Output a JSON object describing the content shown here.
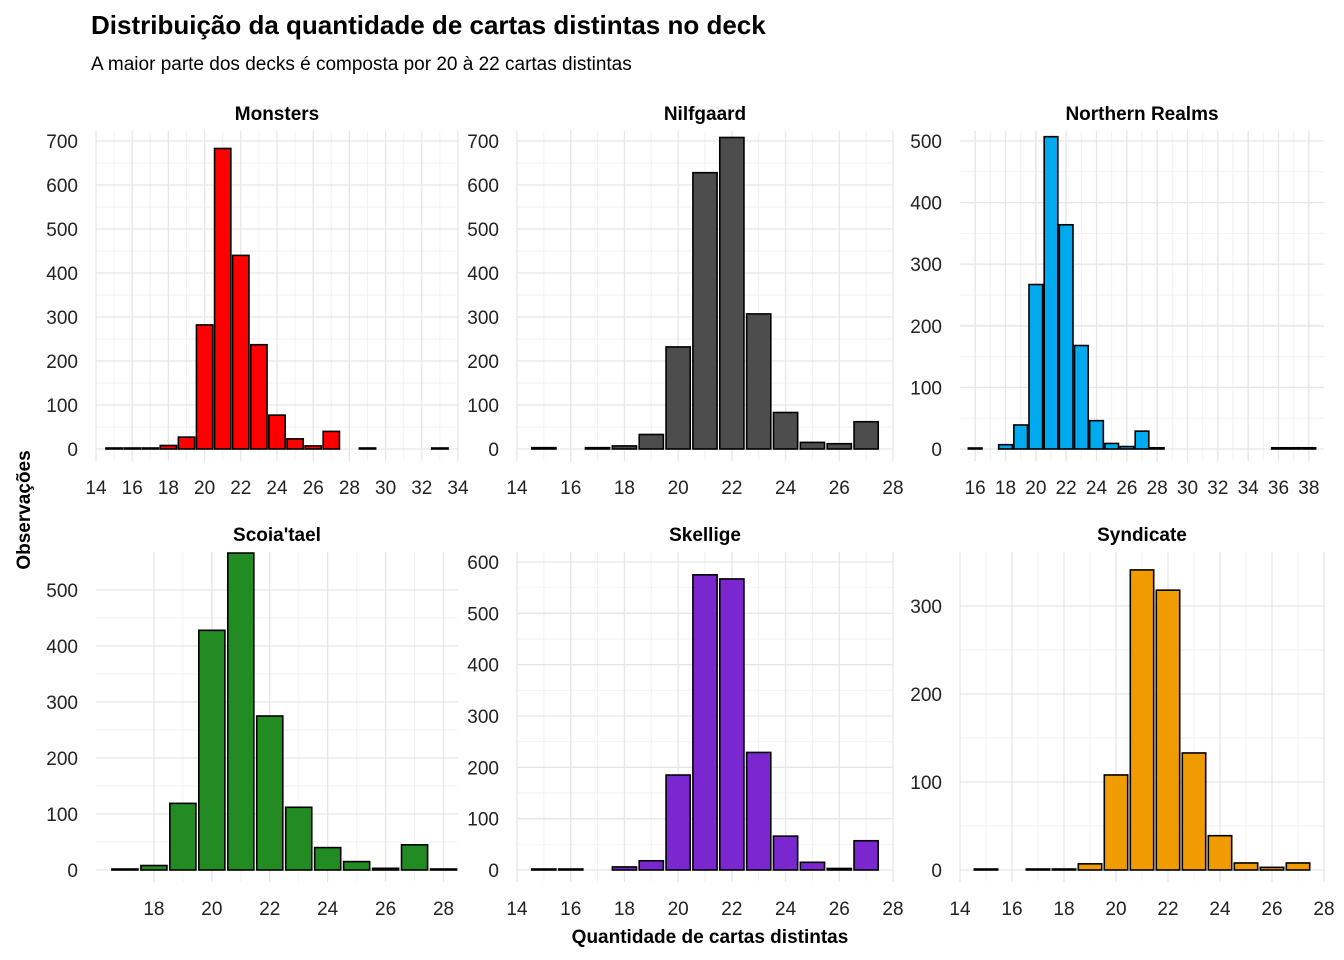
{
  "chart_data": {
    "type": "bar",
    "title": "Distribuição da quantidade de cartas distintas no deck",
    "subtitle": "A maior parte dos decks é composta por 20 à 22 cartas distintas",
    "xlabel": "Quantidade de cartas distintas",
    "ylabel": "Observações",
    "grid": true,
    "fill_outline": "#000000",
    "panels": [
      {
        "name": "Monsters",
        "color": "#ff0000",
        "xlim": [
          14,
          34
        ],
        "xticks": [
          14,
          16,
          18,
          20,
          22,
          24,
          26,
          28,
          30,
          32,
          34
        ],
        "ylim": [
          0,
          700
        ],
        "yticks": [
          0,
          100,
          200,
          300,
          400,
          500,
          600,
          700
        ],
        "x": [
          15,
          16,
          17,
          18,
          19,
          20,
          21,
          22,
          23,
          24,
          25,
          26,
          27,
          29,
          33
        ],
        "values": [
          2,
          2,
          1,
          8,
          27,
          282,
          683,
          440,
          237,
          77,
          23,
          7,
          40,
          2,
          1
        ]
      },
      {
        "name": "Nilfgaard",
        "color": "#4d4d4d",
        "xlim": [
          14,
          28
        ],
        "xticks": [
          14,
          16,
          18,
          20,
          22,
          24,
          26,
          28
        ],
        "ylim": [
          0,
          700
        ],
        "yticks": [
          0,
          100,
          200,
          300,
          400,
          500,
          600,
          700
        ],
        "x": [
          15,
          17,
          18,
          19,
          20,
          21,
          22,
          23,
          24,
          25,
          26,
          27
        ],
        "values": [
          3,
          3,
          7,
          33,
          232,
          628,
          708,
          307,
          83,
          15,
          12,
          62
        ]
      },
      {
        "name": "Northern Realms",
        "color": "#00aaee",
        "xlim": [
          15,
          39
        ],
        "xticks": [
          16,
          18,
          20,
          22,
          24,
          26,
          28,
          30,
          32,
          34,
          36,
          38
        ],
        "ylim": [
          0,
          500
        ],
        "yticks": [
          0,
          100,
          200,
          300,
          400,
          500
        ],
        "x": [
          16,
          18,
          19,
          20,
          21,
          22,
          23,
          24,
          25,
          26,
          27,
          28,
          36,
          37,
          38
        ],
        "values": [
          1,
          7,
          39,
          267,
          507,
          364,
          168,
          46,
          9,
          4,
          29,
          2,
          2,
          2,
          2
        ]
      },
      {
        "name": "Scoia'tael",
        "color": "#228b22",
        "xlim": [
          16,
          28.5
        ],
        "xticks": [
          18,
          20,
          22,
          24,
          26,
          28
        ],
        "ylim": [
          0,
          550
        ],
        "yticks": [
          0,
          100,
          200,
          300,
          400,
          500
        ],
        "x": [
          17,
          18,
          19,
          20,
          21,
          22,
          23,
          24,
          25,
          26,
          27,
          28
        ],
        "values": [
          1,
          8,
          119,
          428,
          566,
          275,
          112,
          40,
          15,
          3,
          45,
          1
        ]
      },
      {
        "name": "Skellige",
        "color": "#7b27d0",
        "xlim": [
          14,
          28
        ],
        "xticks": [
          14,
          16,
          18,
          20,
          22,
          24,
          26,
          28
        ],
        "ylim": [
          0,
          600
        ],
        "yticks": [
          0,
          100,
          200,
          300,
          400,
          500,
          600
        ],
        "x": [
          15,
          16,
          18,
          19,
          20,
          21,
          22,
          23,
          24,
          25,
          26,
          27
        ],
        "values": [
          1,
          1,
          6,
          18,
          185,
          575,
          567,
          229,
          66,
          15,
          3,
          57
        ]
      },
      {
        "name": "Syndicate",
        "color": "#f09c00",
        "xlim": [
          14,
          28
        ],
        "xticks": [
          14,
          16,
          18,
          20,
          22,
          24,
          26,
          28
        ],
        "ylim": [
          0,
          350
        ],
        "yticks": [
          0,
          100,
          200,
          300
        ],
        "x": [
          15,
          17,
          18,
          19,
          20,
          21,
          22,
          23,
          24,
          25,
          26,
          27
        ],
        "values": [
          1,
          1,
          1,
          7,
          108,
          341,
          318,
          133,
          39,
          8,
          3,
          8
        ]
      }
    ]
  }
}
